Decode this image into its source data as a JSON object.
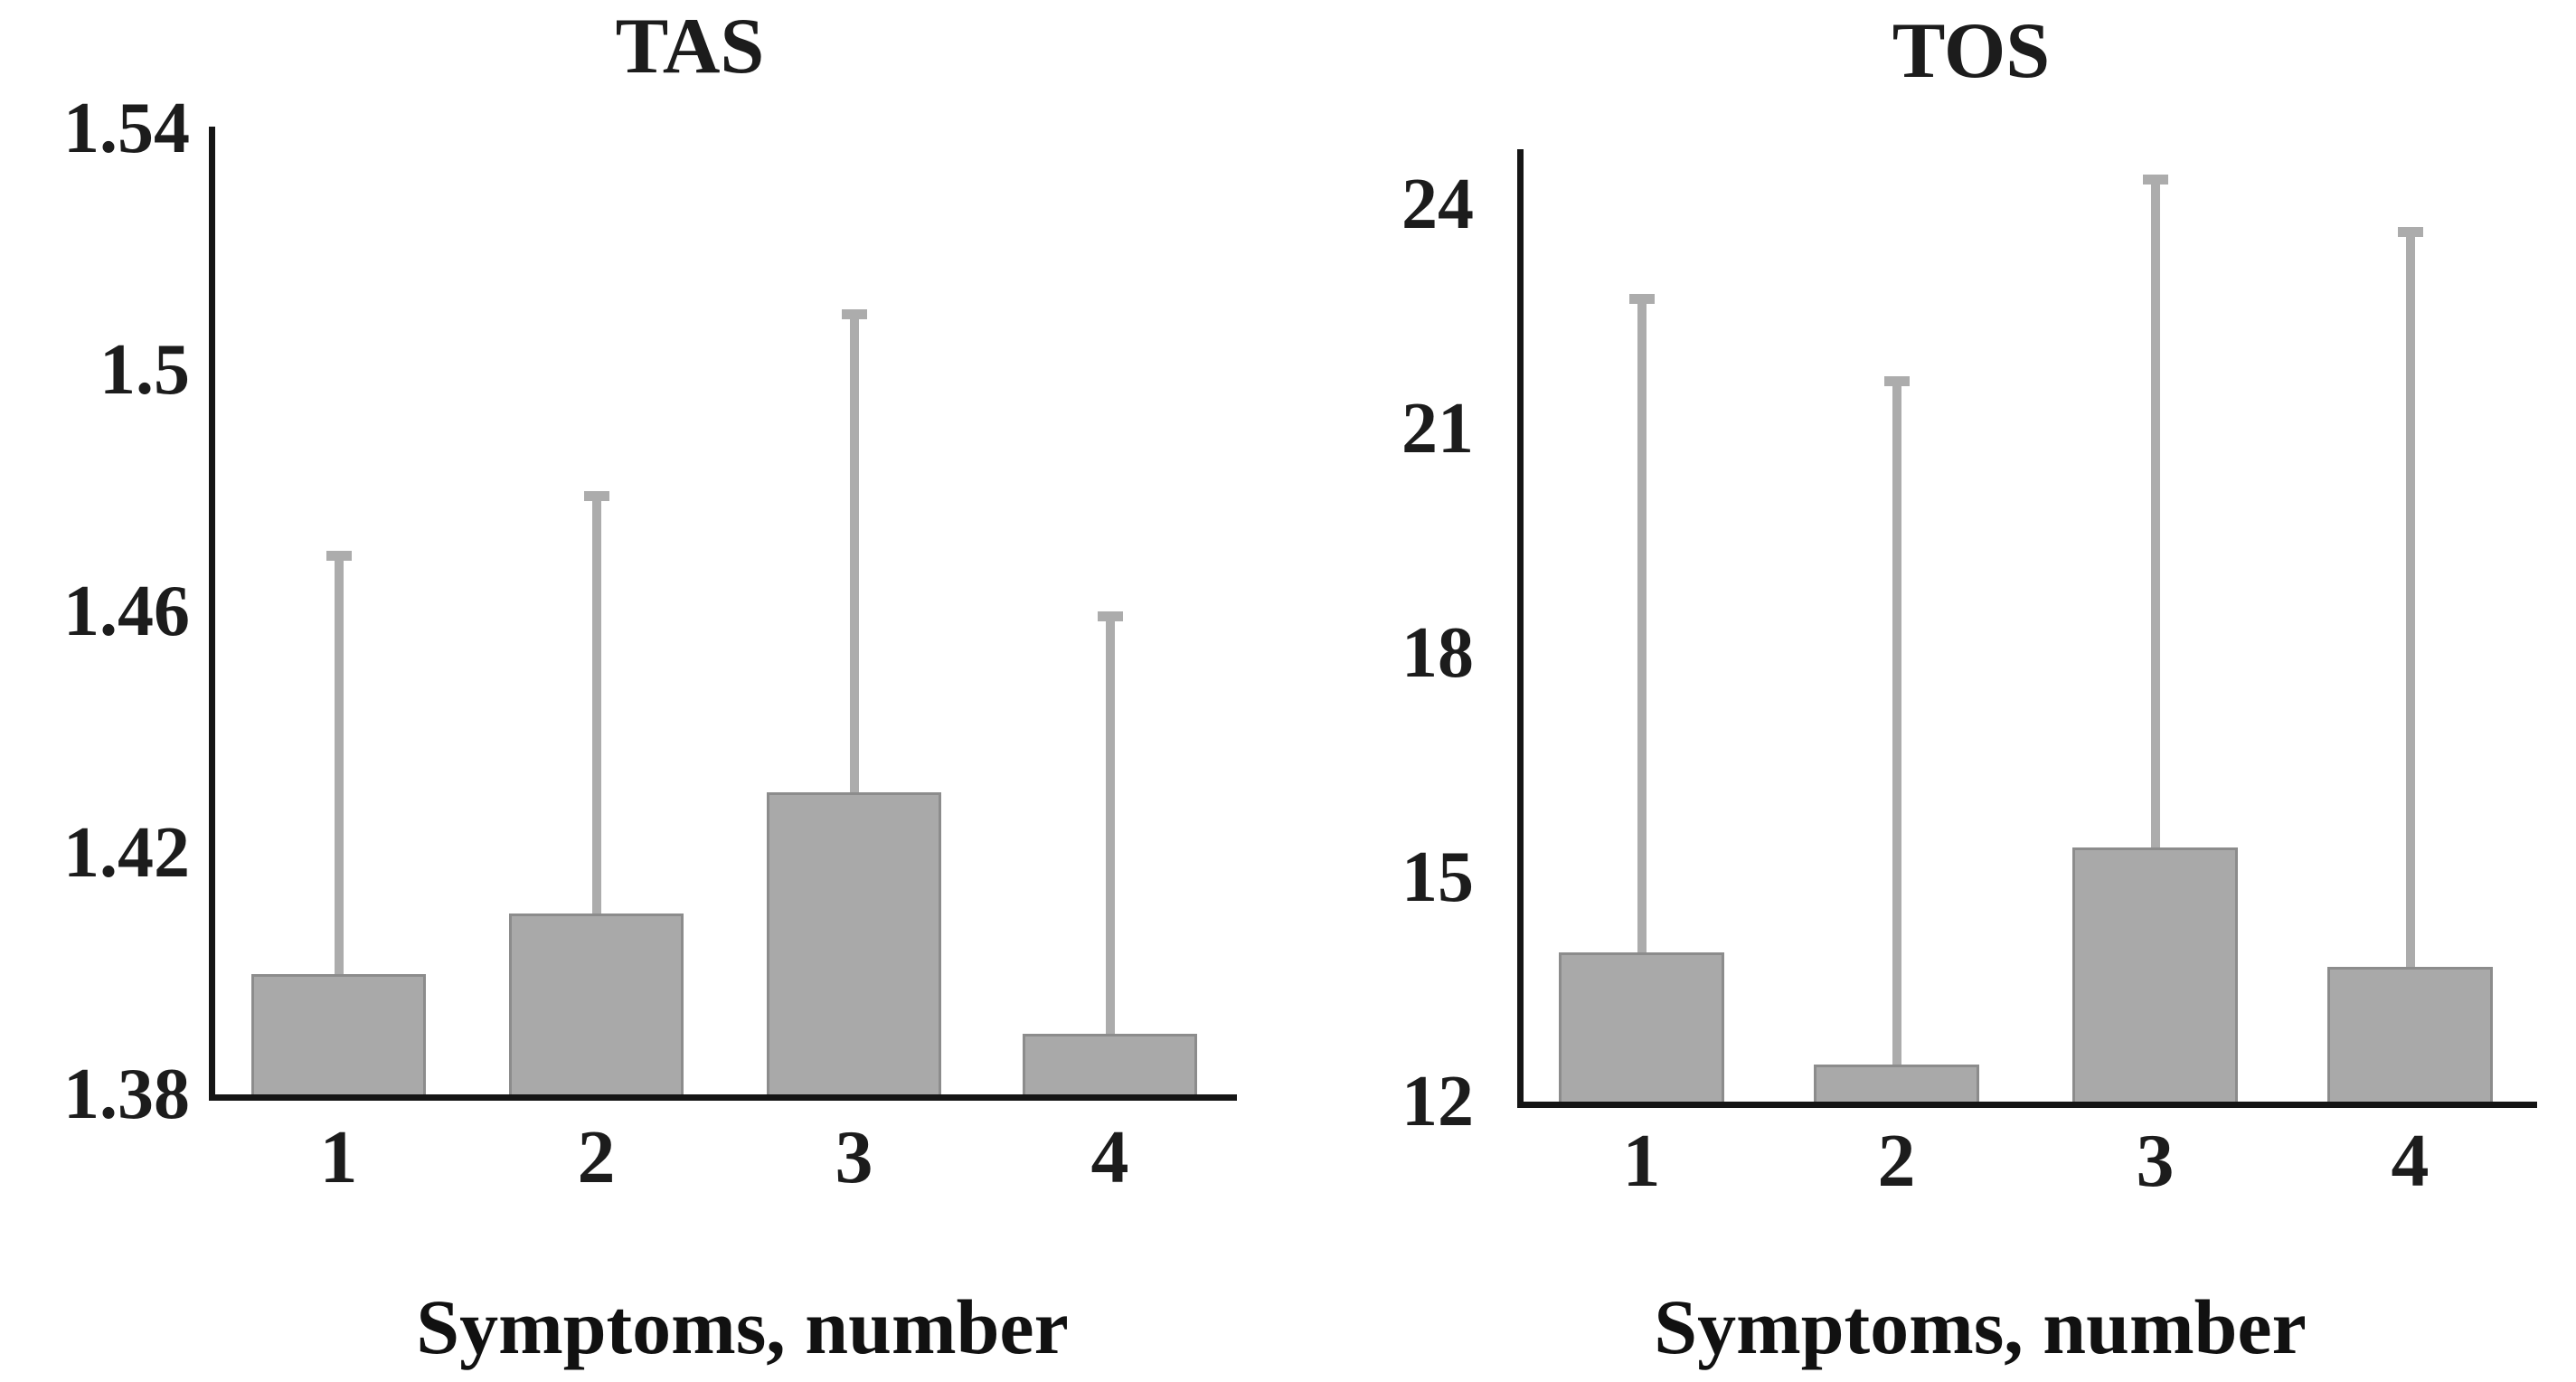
{
  "figure": {
    "background": "#ffffff",
    "x_axis_title": "Symptoms, number"
  },
  "chart_data": [
    {
      "type": "bar",
      "title": "TAS",
      "xlabel": "Symptoms, number",
      "categories": [
        "1",
        "2",
        "3",
        "4"
      ],
      "values": [
        1.4,
        1.41,
        1.43,
        1.39
      ],
      "error_top": [
        1.47,
        1.48,
        1.51,
        1.46
      ],
      "ylim": [
        1.38,
        1.54
      ],
      "yticks": [
        1.38,
        1.42,
        1.46,
        1.5,
        1.54
      ],
      "ytick_labels": [
        "1.38",
        "1.42",
        "1.46",
        "1.5",
        "1.54"
      ],
      "grid": false,
      "legend_position": "none",
      "bar_color": "#a9a9a9",
      "bar_border_color": "#8c8c8c",
      "error_color": "#acacac",
      "axis_color": "#151515"
    },
    {
      "type": "bar",
      "title": "TOS",
      "xlabel": "Symptoms, number",
      "categories": [
        "1",
        "2",
        "3",
        "4"
      ],
      "values": [
        14.0,
        12.5,
        15.4,
        13.8
      ],
      "error_top": [
        22.8,
        21.7,
        24.4,
        23.7
      ],
      "ylim": [
        12,
        24
      ],
      "yticks": [
        12,
        15,
        18,
        21,
        24
      ],
      "ytick_labels": [
        "12",
        "15",
        "18",
        "21",
        "24"
      ],
      "grid": false,
      "legend_position": "none",
      "bar_color": "#a9a9a9",
      "bar_border_color": "#8c8c8c",
      "error_color": "#acacac",
      "axis_color": "#151515"
    }
  ]
}
